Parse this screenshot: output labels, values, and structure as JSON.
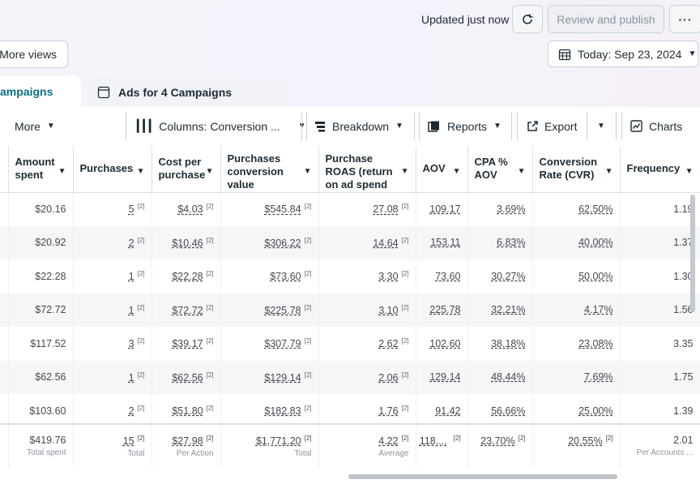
{
  "header": {
    "status": "Updated just now",
    "review_label": "Review and publish",
    "more_label": "···",
    "more_views_label": "More views",
    "date_label": "Today: Sep 23, 2024"
  },
  "tabs": {
    "campaigns": "ampaigns",
    "ads": "Ads for 4 Campaigns"
  },
  "toolbar": {
    "more": "More",
    "columns": "Columns: Conversion ...",
    "breakdown": "Breakdown",
    "reports": "Reports",
    "export": "Export",
    "charts": "Charts"
  },
  "columns": [
    "Amount spent",
    "Purchases",
    "Cost per purchase",
    "Purchases conversion value",
    "Purchase ROAS (return on ad spend",
    "AOV",
    "CPA % AOV",
    "Conversion Rate (CVR)",
    "Frequency"
  ],
  "footnote_mark": "[2]",
  "rows": [
    {
      "amount": "$20.16",
      "purchases": "5",
      "cpp": "$4.03",
      "value": "$545.84",
      "roas": "27.08",
      "aov": "109.17",
      "cpa": "3.69%",
      "cvr": "62.50%",
      "freq": "1.19"
    },
    {
      "amount": "$20.92",
      "purchases": "2",
      "cpp": "$10.46",
      "value": "$306.22",
      "roas": "14.64",
      "aov": "153.11",
      "cpa": "6.83%",
      "cvr": "40.00%",
      "freq": "1.37"
    },
    {
      "amount": "$22.28",
      "purchases": "1",
      "cpp": "$22.28",
      "value": "$73.60",
      "roas": "3.30",
      "aov": "73.60",
      "cpa": "30.27%",
      "cvr": "50.00%",
      "freq": "1.30"
    },
    {
      "amount": "$72.72",
      "purchases": "1",
      "cpp": "$72.72",
      "value": "$225.78",
      "roas": "3.10",
      "aov": "225.78",
      "cpa": "32.21%",
      "cvr": "4.17%",
      "freq": "1.56"
    },
    {
      "amount": "$117.52",
      "purchases": "3",
      "cpp": "$39.17",
      "value": "$307.79",
      "roas": "2.62",
      "aov": "102.60",
      "cpa": "38.18%",
      "cvr": "23.08%",
      "freq": "3.35"
    },
    {
      "amount": "$62.56",
      "purchases": "1",
      "cpp": "$62.56",
      "value": "$129.14",
      "roas": "2.06",
      "aov": "129.14",
      "cpa": "48.44%",
      "cvr": "7.69%",
      "freq": "1.75"
    },
    {
      "amount": "$103.60",
      "purchases": "2",
      "cpp": "$51.80",
      "value": "$182.83",
      "roas": "1.76",
      "aov": "91.42",
      "cpa": "56.66%",
      "cvr": "25.00%",
      "freq": "1.39"
    }
  ],
  "totals": {
    "amount": "$419.76",
    "amount_sub": "Total spent",
    "purchases": "15",
    "purchases_sub": "Total",
    "cpp": "$27.98",
    "cpp_sub": "Per Action",
    "value": "$1,771.20",
    "value_sub": "Total",
    "roas": "4.22",
    "roas_sub": "Average",
    "aov": "118....",
    "cpa": "23.70%",
    "cvr": "20.55%",
    "freq": "2.01",
    "freq_sub": "Per Accounts ..."
  }
}
